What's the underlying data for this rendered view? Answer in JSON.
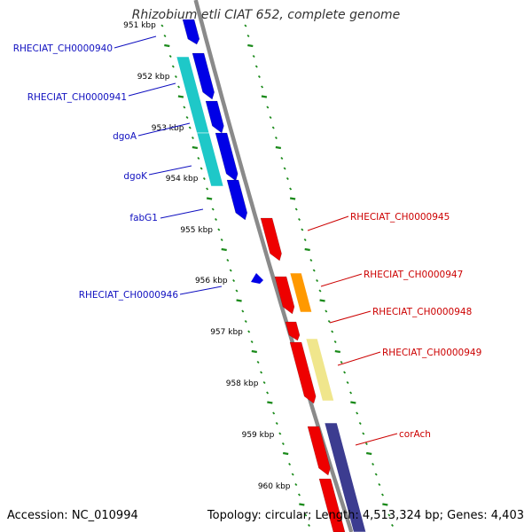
{
  "title": "Rhizobium etli CIAT 652, complete genome",
  "footer": {
    "accession": "Accession: NC_010994",
    "topology": "Topology: circular; Length: 4,513,324 bp; Genes: 4,403"
  },
  "colors": {
    "forward_gene": "#0000e6",
    "forward_operon": "#1ec8c8",
    "reverse_gene": "#ee0000",
    "reverse_operon_orange": "#ff9900",
    "reverse_operon_yellow": "#f0e68c",
    "reverse_operon_purple": "#3c3c90",
    "backbone": "#8a8a8a",
    "ticks": "#1a8a1a",
    "forward_label": "#1010c0",
    "reverse_label": "#cc0000"
  },
  "scale_labels": [
    "951 kbp",
    "952 kbp",
    "953 kbp",
    "954 kbp",
    "955 kbp",
    "956 kbp",
    "957 kbp",
    "958 kbp",
    "959 kbp",
    "960 kbp"
  ],
  "forward_labels": [
    "RHECIAT_CH0000940",
    "RHECIAT_CH0000941",
    "dgoA",
    "dgoK",
    "fabG1",
    "RHECIAT_CH0000946"
  ],
  "reverse_labels": [
    "RHECIAT_CH0000945",
    "RHECIAT_CH0000947",
    "RHECIAT_CH0000948",
    "RHECIAT_CH0000949",
    "corAch"
  ]
}
